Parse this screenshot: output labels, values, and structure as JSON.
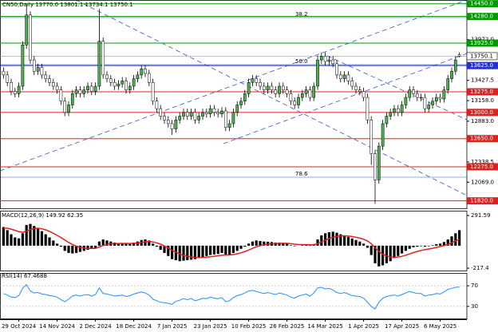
{
  "chart_data": [
    {
      "type": "candlestick",
      "title": "CN50,Daily  13770.0 13801.1 13734.1 13750.1",
      "categories": [
        null,
        null,
        null,
        null,
        "29 Oct 2024",
        null,
        null,
        null,
        null,
        null,
        null,
        null,
        null,
        null,
        "14 Nov 2024",
        null,
        null,
        null,
        null,
        null,
        null,
        null,
        null,
        null,
        "2 Dec 2024",
        null,
        null,
        null,
        null,
        null,
        null,
        null,
        null,
        null,
        "18 Dec 2024",
        null,
        null,
        null,
        null,
        null,
        null,
        null,
        null,
        null,
        "7 Jan 2025",
        null,
        null,
        null,
        null,
        null,
        null,
        null,
        null,
        null,
        "23 Jan 2025",
        null,
        null,
        null,
        null,
        null,
        null,
        null,
        null,
        null,
        "10 Feb 2025",
        null,
        null,
        null,
        null,
        null,
        null,
        null,
        null,
        null,
        "26 Feb 2025",
        null,
        null,
        null,
        null,
        null,
        null,
        null,
        null,
        null,
        "14 Mar 2025",
        null,
        null,
        null,
        null,
        null,
        null,
        null,
        null,
        null,
        "1 Apr 2025",
        null,
        null,
        null,
        null,
        null,
        null,
        null,
        null,
        null,
        "17 Apr 2025",
        null,
        null,
        null,
        null,
        null,
        null,
        null,
        null,
        null,
        "6 May 2025",
        null,
        null,
        null,
        null,
        null
      ],
      "open": [
        13550,
        13500,
        13400,
        13280,
        13250,
        13350,
        13900,
        14300,
        13700,
        13550,
        13600,
        13500,
        13450,
        13400,
        13350,
        13300,
        13150,
        13000,
        13100,
        13250,
        13300,
        13250,
        13300,
        13350,
        13280,
        13350,
        13950,
        13500,
        13450,
        13400,
        13350,
        13380,
        13420,
        13300,
        13350,
        13450,
        13500,
        13580,
        13520,
        13400,
        13150,
        13050,
        12950,
        12900,
        12850,
        12780,
        12900,
        12950,
        13000,
        12950,
        13000,
        12900,
        12950,
        13000,
        12980,
        13050,
        13000,
        12980,
        13020,
        12800,
        12850,
        13000,
        13100,
        13150,
        13250,
        13400,
        13450,
        13400,
        13350,
        13300,
        13350,
        13300,
        13250,
        13350,
        13300,
        13250,
        13150,
        13100,
        13200,
        13250,
        13300,
        13200,
        13350,
        13700,
        13750,
        13680,
        13700,
        13650,
        13500,
        13450,
        13500,
        13420,
        13350,
        13300,
        13280,
        13200,
        12900,
        12450,
        12100,
        12550,
        12850,
        12950,
        13000,
        13050,
        13000,
        13100,
        13200,
        13300,
        13250,
        13200,
        13200,
        13050,
        13100,
        13150,
        13200,
        13180,
        13300,
        13450,
        13550,
        13770.0
      ],
      "high": [
        13600,
        13550,
        13450,
        13330,
        13400,
        13950,
        14440,
        14350,
        13750,
        13650,
        13650,
        13550,
        13500,
        13450,
        13400,
        13350,
        13200,
        13150,
        13300,
        13350,
        13350,
        13350,
        13400,
        13400,
        13400,
        14380,
        14000,
        13550,
        13500,
        13450,
        13430,
        13470,
        13470,
        13400,
        13500,
        13550,
        13630,
        13630,
        13570,
        13450,
        13200,
        13100,
        13000,
        12950,
        12900,
        12950,
        13000,
        13050,
        13050,
        13050,
        13050,
        13000,
        13050,
        13050,
        13100,
        13100,
        13050,
        13070,
        13070,
        12900,
        13050,
        13150,
        13200,
        13300,
        13450,
        13500,
        13500,
        13450,
        13400,
        13400,
        13400,
        13350,
        13400,
        13400,
        13350,
        13300,
        13200,
        13250,
        13300,
        13350,
        13350,
        13400,
        13760,
        13800,
        13800,
        13750,
        13750,
        13700,
        13550,
        13550,
        13550,
        13470,
        13400,
        13350,
        13330,
        13250,
        12950,
        12500,
        12600,
        12900,
        13000,
        13050,
        13100,
        13100,
        13150,
        13250,
        13350,
        13350,
        13300,
        13250,
        13250,
        13150,
        13200,
        13250,
        13250,
        13350,
        13500,
        13600,
        13750,
        13801.1
      ],
      "low": [
        13450,
        13350,
        13230,
        13200,
        13200,
        13300,
        13850,
        13650,
        13500,
        13500,
        13450,
        13400,
        13350,
        13300,
        13250,
        13100,
        12950,
        12950,
        13050,
        13200,
        13200,
        13200,
        13250,
        13230,
        13230,
        13300,
        13450,
        13400,
        13350,
        13300,
        13300,
        13330,
        13250,
        13250,
        13300,
        13400,
        13450,
        13470,
        13350,
        13100,
        13000,
        12900,
        12850,
        12800,
        12700,
        12730,
        12850,
        12900,
        12900,
        12900,
        12850,
        12850,
        12900,
        12930,
        12930,
        12950,
        12930,
        12930,
        12750,
        12750,
        12800,
        12950,
        13050,
        13100,
        13200,
        13350,
        13350,
        13300,
        13250,
        13250,
        13250,
        13200,
        13200,
        13250,
        13200,
        13100,
        13050,
        13050,
        13150,
        13200,
        13150,
        13150,
        13300,
        13650,
        13630,
        13630,
        13600,
        13450,
        13400,
        13400,
        13370,
        13300,
        13250,
        13230,
        13150,
        12850,
        12300,
        11780,
        12050,
        12500,
        12800,
        12900,
        12950,
        12950,
        12950,
        13050,
        13150,
        13200,
        13150,
        13150,
        13000,
        13000,
        13050,
        13100,
        13130,
        13130,
        13250,
        13400,
        13500,
        13734.1
      ],
      "close": [
        13500,
        13400,
        13280,
        13250,
        13350,
        13900,
        14300,
        13700,
        13550,
        13600,
        13500,
        13450,
        13400,
        13350,
        13300,
        13150,
        13000,
        13100,
        13250,
        13300,
        13250,
        13300,
        13350,
        13280,
        13350,
        13950,
        13500,
        13450,
        13400,
        13350,
        13380,
        13420,
        13300,
        13350,
        13450,
        13500,
        13580,
        13520,
        13400,
        13150,
        13050,
        12950,
        12900,
        12850,
        12780,
        12900,
        12950,
        13000,
        12950,
        13000,
        12900,
        12950,
        13000,
        12980,
        13050,
        13000,
        12980,
        13020,
        12800,
        12850,
        13000,
        13100,
        13150,
        13250,
        13400,
        13450,
        13400,
        13350,
        13300,
        13350,
        13300,
        13250,
        13350,
        13300,
        13250,
        13150,
        13100,
        13200,
        13250,
        13300,
        13200,
        13350,
        13700,
        13750,
        13680,
        13700,
        13650,
        13500,
        13450,
        13500,
        13420,
        13350,
        13300,
        13280,
        13200,
        12900,
        12450,
        12100,
        12550,
        12850,
        12950,
        13000,
        13050,
        13000,
        13100,
        13200,
        13300,
        13250,
        13200,
        13200,
        13050,
        13100,
        13150,
        13200,
        13180,
        13300,
        13450,
        13550,
        13700,
        13750.1
      ],
      "bull_color": "#4caf50",
      "bear_color": "#ffffff",
      "wick_color": "#000000",
      "ylim": [
        11710,
        14500
      ],
      "yticks": [
        {
          "value": 13972,
          "label": "13972.0"
        },
        13427.5,
        {
          "value": 13158,
          "label": "13158.0"
        },
        {
          "value": 12883,
          "label": "12883.0"
        },
        12338.5,
        {
          "value": 12069,
          "label": "12069.0"
        }
      ],
      "levels": [
        {
          "value": 14450,
          "label": "14450.0",
          "color": "#009900"
        },
        {
          "value": 14280,
          "label": "14280.0",
          "color": "#009900"
        },
        {
          "value": 13925,
          "label": "13925.0",
          "color": "#009900"
        },
        {
          "value": 13625,
          "label": "13625.0",
          "color": "#2233cc"
        },
        {
          "value": 13275,
          "label": "13275.0",
          "color": "#e02020"
        },
        {
          "value": 13000,
          "label": "13000.0",
          "color": "#e02020"
        },
        {
          "value": 12650,
          "label": "12650.0",
          "color": "#e02020"
        },
        {
          "value": 12275,
          "label": "12275.0",
          "color": "#e02020"
        },
        {
          "value": 11820,
          "label": "11820.0",
          "color": "#e02020"
        }
      ],
      "last": 13750.1,
      "fib_labels": [
        "38.2",
        "50.0",
        "78.6"
      ]
    },
    {
      "type": "macd",
      "title": "MACD(12,26,9) 149.92 62.35",
      "values": [
        180,
        150,
        110,
        80,
        70,
        120,
        200,
        210,
        190,
        170,
        140,
        110,
        80,
        50,
        20,
        -10,
        -50,
        -70,
        -75,
        -70,
        -60,
        -50,
        -40,
        -30,
        -20,
        40,
        60,
        50,
        40,
        30,
        25,
        25,
        20,
        20,
        30,
        40,
        55,
        60,
        50,
        20,
        -10,
        -40,
        -70,
        -100,
        -130,
        -140,
        -150,
        -145,
        -140,
        -135,
        -130,
        -120,
        -110,
        -100,
        -90,
        -85,
        -80,
        -70,
        -85,
        -90,
        -70,
        -50,
        -30,
        -10,
        20,
        40,
        50,
        45,
        40,
        38,
        35,
        30,
        30,
        28,
        20,
        5,
        -5,
        0,
        5,
        10,
        5,
        15,
        60,
        100,
        120,
        130,
        135,
        125,
        110,
        100,
        85,
        70,
        55,
        40,
        20,
        -20,
        -90,
        -170,
        -200,
        -190,
        -170,
        -150,
        -120,
        -100,
        -75,
        -50,
        -30,
        -15,
        -10,
        -5,
        -10,
        -5,
        5,
        15,
        20,
        35,
        60,
        90,
        120,
        149.92
      ],
      "signal": [
        170,
        168,
        160,
        148,
        135,
        130,
        140,
        155,
        165,
        168,
        163,
        153,
        138,
        120,
        100,
        78,
        55,
        32,
        12,
        -5,
        -16,
        -23,
        -26,
        -27,
        -26,
        -13,
        2,
        12,
        18,
        20,
        21,
        22,
        22,
        21,
        23,
        26,
        32,
        37,
        40,
        36,
        27,
        14,
        -3,
        -22,
        -44,
        -63,
        -80,
        -93,
        -102,
        -109,
        -113,
        -115,
        -114,
        -111,
        -107,
        -102,
        -98,
        -92,
        -91,
        -90,
        -86,
        -79,
        -69,
        -57,
        -42,
        -26,
        -11,
        0,
        8,
        14,
        18,
        20,
        22,
        23,
        23,
        19,
        14,
        11,
        10,
        10,
        9,
        10,
        20,
        36,
        53,
        68,
        81,
        90,
        94,
        95,
        93,
        88,
        81,
        73,
        62,
        46,
        19,
        -20,
        -56,
        -83,
        -100,
        -110,
        -112,
        -110,
        -103,
        -92,
        -80,
        -67,
        -56,
        -46,
        -39,
        -32,
        -25,
        -17,
        -9,
        0,
        12,
        28,
        46,
        62.35
      ],
      "color": "#000000",
      "signal_color": "#e02020",
      "ylim": [
        -248,
        338
      ],
      "yticks": [
        291.59,
        -217.4
      ]
    },
    {
      "type": "rsi",
      "title": "RSI(14) 67.4688",
      "values": [
        55,
        52,
        48,
        47,
        51,
        65,
        72,
        60,
        56,
        57,
        54,
        53,
        51,
        50,
        48,
        43,
        39,
        44,
        50,
        52,
        50,
        52,
        53,
        50,
        53,
        66,
        55,
        54,
        52,
        50,
        51,
        52,
        49,
        51,
        54,
        56,
        58,
        56,
        52,
        44,
        41,
        38,
        37,
        36,
        34,
        40,
        42,
        45,
        43,
        45,
        41,
        43,
        46,
        45,
        48,
        46,
        45,
        47,
        39,
        41,
        47,
        51,
        53,
        56,
        60,
        61,
        59,
        57,
        55,
        57,
        55,
        53,
        56,
        54,
        52,
        48,
        46,
        50,
        52,
        54,
        50,
        56,
        66,
        67,
        64,
        65,
        62,
        57,
        55,
        57,
        54,
        51,
        50,
        49,
        46,
        38,
        30,
        25,
        38,
        46,
        49,
        51,
        52,
        50,
        53,
        56,
        59,
        57,
        55,
        55,
        50,
        52,
        53,
        55,
        54,
        58,
        63,
        65,
        67,
        67.4688
      ],
      "color": "#1e90ff",
      "ylim": [
        5,
        95
      ],
      "yticks": [
        70,
        30
      ]
    }
  ]
}
